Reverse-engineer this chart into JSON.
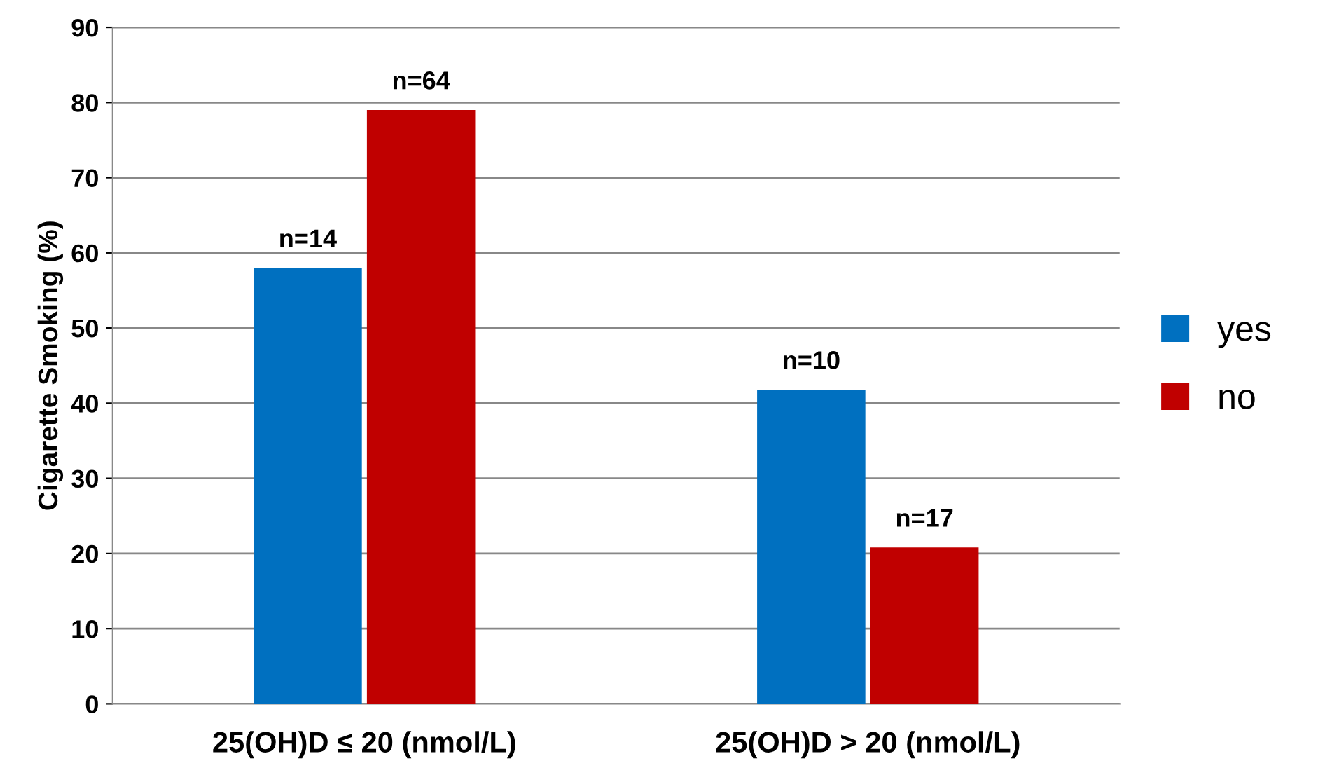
{
  "chart_data": {
    "type": "bar",
    "ylabel": "Cigarette Smoking (%)",
    "categories": [
      "25(OH)D ≤ 20 (nmol/L)",
      "25(OH)D > 20 (nmol/L)"
    ],
    "series": [
      {
        "name": "yes",
        "color": "#0070c0",
        "values": [
          58,
          41.8
        ]
      },
      {
        "name": "no",
        "color": "#c00000",
        "values": [
          79,
          20.8
        ]
      }
    ],
    "annotations": [
      {
        "text": "n=14",
        "x": "25(OH)D ≤ 20 (nmol/L)",
        "y": 58
      },
      {
        "text": "n=10",
        "x": "25(OH)D > 20 (nmol/L)",
        "y": 41.8
      },
      {
        "text": "n=64",
        "x": "25(OH)D ≤ 20 (nmol/L)",
        "y": 79
      },
      {
        "text": "n=17",
        "x": "25(OH)D > 20 (nmol/L)",
        "y": 20.8
      }
    ],
    "ylim": [
      0,
      90
    ],
    "yticks": [
      0,
      10,
      20,
      30,
      40,
      50,
      60,
      70,
      80,
      90
    ],
    "grid": "y",
    "legend": "right"
  }
}
